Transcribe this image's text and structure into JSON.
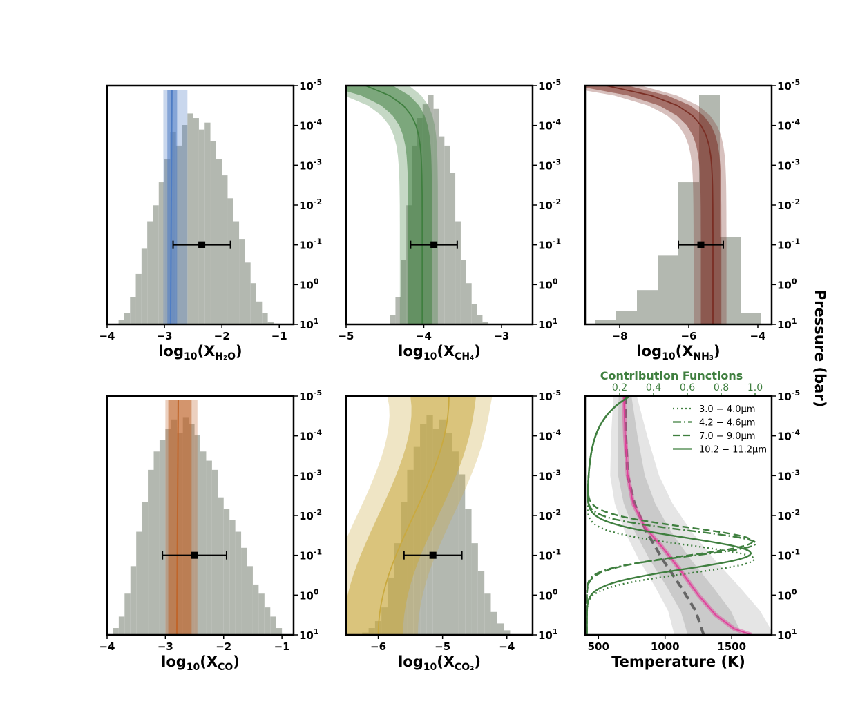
{
  "ylabel": "Pressure (bar)",
  "y_ticks": [
    {
      "exp": "-5",
      "sign": ""
    },
    {
      "exp": "-4",
      "sign": ""
    },
    {
      "exp": "-3",
      "sign": ""
    },
    {
      "exp": "-2",
      "sign": ""
    },
    {
      "exp": "-1",
      "sign": ""
    },
    {
      "exp": "0",
      "sign": ""
    },
    {
      "exp": "1",
      "sign": ""
    }
  ],
  "colors": {
    "hist": "#b3b8b0",
    "h2o": "#4d7cc4",
    "ch4": "#3f7f3f",
    "nh3": "#7a2e24",
    "co": "#c0652a",
    "co2": "#c9a93f",
    "tp": "#e0409a",
    "cf": "#3f7f3f"
  },
  "chart_data": [
    {
      "type": "histogram+profile",
      "species": "H2O",
      "xlabel_main": "log",
      "xlabel_sub10": "10",
      "xlabel_open": "(X",
      "xlabel_species": "H₂O",
      "xlabel_close": ")",
      "xlim": [
        -4,
        -0.75
      ],
      "xticks": [
        -4,
        -3,
        -2,
        -1
      ],
      "xtick_labels": [
        "−4",
        "−3",
        "−2",
        "−1"
      ],
      "ylim_pressure_bar": [
        10,
        1e-05
      ],
      "hist_bins_center": [
        -3.75,
        -3.65,
        -3.55,
        -3.45,
        -3.35,
        -3.25,
        -3.15,
        -3.05,
        -2.95,
        -2.85,
        -2.75,
        -2.65,
        -2.55,
        -2.45,
        -2.35,
        -2.25,
        -2.15,
        -2.05,
        -1.95,
        -1.85,
        -1.75,
        -1.65,
        -1.55,
        -1.45,
        -1.35,
        -1.25,
        -1.15
      ],
      "hist_counts": [
        0.02,
        0.05,
        0.12,
        0.22,
        0.33,
        0.45,
        0.52,
        0.62,
        0.72,
        0.84,
        0.78,
        0.87,
        0.92,
        0.9,
        0.85,
        0.88,
        0.8,
        0.72,
        0.65,
        0.55,
        0.45,
        0.37,
        0.27,
        0.18,
        0.1,
        0.05,
        0.01
      ],
      "profile_median": -2.87,
      "profile_1sigma": [
        -2.92,
        -2.82
      ],
      "profile_2sigma": [
        -3.0,
        -2.62
      ],
      "errorbar": {
        "x": -2.35,
        "xerr_low": 0.5,
        "xerr_high": 0.5,
        "pressure_bar": 0.1
      }
    },
    {
      "type": "histogram+profile",
      "species": "CH4",
      "xlabel_main": "log",
      "xlabel_sub10": "10",
      "xlabel_open": "(X",
      "xlabel_species": "CH₄",
      "xlabel_close": ")",
      "xlim": [
        -5,
        -2.6
      ],
      "xticks": [
        -5,
        -4,
        -3
      ],
      "xtick_labels": [
        "−5",
        "−4",
        "−3"
      ],
      "hist_bins_center": [
        -4.4,
        -4.33,
        -4.26,
        -4.19,
        -4.12,
        -4.05,
        -3.98,
        -3.91,
        -3.84,
        -3.77,
        -3.7,
        -3.63,
        -3.56,
        -3.49,
        -3.42,
        -3.35,
        -3.28,
        -3.21
      ],
      "hist_counts": [
        0.04,
        0.12,
        0.28,
        0.52,
        0.78,
        0.9,
        0.96,
        1.0,
        0.94,
        0.82,
        0.78,
        0.66,
        0.45,
        0.28,
        0.18,
        0.09,
        0.04,
        0.01
      ],
      "profile_median_top": -4.75,
      "profile_median_deep": -4.02,
      "errorbar": {
        "x": -3.87,
        "xerr_low": 0.3,
        "xerr_high": 0.3,
        "pressure_bar": 0.1
      }
    },
    {
      "type": "histogram+profile",
      "species": "NH3",
      "xlabel_main": "log",
      "xlabel_sub10": "10",
      "xlabel_open": "(X",
      "xlabel_species": "NH₃",
      "xlabel_close": ")",
      "xlim": [
        -9,
        -3.6
      ],
      "xticks": [
        -8,
        -6,
        -4
      ],
      "xtick_labels": [
        "−8",
        "−6",
        "−4"
      ],
      "hist_bins_center": [
        -8.4,
        -7.8,
        -7.2,
        -6.6,
        -6.0,
        -5.4,
        -4.8,
        -4.2
      ],
      "hist_counts": [
        0.02,
        0.06,
        0.15,
        0.3,
        0.62,
        1.0,
        0.38,
        0.05
      ],
      "profile_median_top": -8.4,
      "profile_median_deep": -5.3,
      "errorbar": {
        "x": -5.65,
        "xerr_low": 0.65,
        "xerr_high": 0.65,
        "pressure_bar": 0.1
      }
    },
    {
      "type": "histogram+profile",
      "species": "CO",
      "xlabel_main": "log",
      "xlabel_sub10": "10",
      "xlabel_open": "(X",
      "xlabel_species": "CO",
      "xlabel_close": ")",
      "xlim": [
        -4,
        -0.8
      ],
      "xticks": [
        -4,
        -3,
        -2,
        -1
      ],
      "xtick_labels": [
        "−4",
        "−3",
        "−2",
        "−1"
      ],
      "hist_bins_center": [
        -3.85,
        -3.75,
        -3.65,
        -3.55,
        -3.45,
        -3.35,
        -3.25,
        -3.15,
        -3.05,
        -2.95,
        -2.85,
        -2.75,
        -2.65,
        -2.55,
        -2.45,
        -2.35,
        -2.25,
        -2.15,
        -2.05,
        -1.95,
        -1.85,
        -1.75,
        -1.65,
        -1.55,
        -1.45,
        -1.35,
        -1.25,
        -1.15,
        -1.05
      ],
      "hist_counts": [
        0.03,
        0.08,
        0.18,
        0.3,
        0.45,
        0.58,
        0.72,
        0.8,
        0.85,
        0.9,
        0.94,
        0.88,
        0.95,
        0.92,
        0.87,
        0.8,
        0.76,
        0.72,
        0.6,
        0.55,
        0.5,
        0.45,
        0.38,
        0.3,
        0.22,
        0.18,
        0.12,
        0.08,
        0.03
      ],
      "profile_median": -2.78,
      "errorbar": {
        "x": -2.5,
        "xerr_low": 0.55,
        "xerr_high": 0.55,
        "pressure_bar": 0.1
      }
    },
    {
      "type": "histogram+profile",
      "species": "CO2",
      "xlabel_main": "log",
      "xlabel_sub10": "10",
      "xlabel_open": "(X",
      "xlabel_species": "CO₂",
      "xlabel_close": ")",
      "xlim": [
        -6.5,
        -3.6
      ],
      "xticks": [
        -6,
        -5,
        -4
      ],
      "xtick_labels": [
        "−6",
        "−5",
        "−4"
      ],
      "hist_bins_center": [
        -6.2,
        -6.1,
        -6.0,
        -5.9,
        -5.8,
        -5.7,
        -5.6,
        -5.5,
        -5.4,
        -5.3,
        -5.2,
        -5.1,
        -5.0,
        -4.9,
        -4.8,
        -4.7,
        -4.6,
        -4.5,
        -4.4,
        -4.3,
        -4.2,
        -4.1,
        -4.0
      ],
      "hist_counts": [
        0.01,
        0.03,
        0.06,
        0.12,
        0.25,
        0.4,
        0.58,
        0.72,
        0.82,
        0.92,
        0.96,
        0.9,
        0.94,
        0.88,
        0.8,
        0.7,
        0.55,
        0.4,
        0.28,
        0.18,
        0.1,
        0.05,
        0.02
      ],
      "profile_median_top": -4.9,
      "profile_median_deep": -6.0,
      "errorbar": {
        "x": -5.15,
        "xerr_low": 0.45,
        "xerr_high": 0.45,
        "pressure_bar": 0.1
      }
    },
    {
      "type": "line",
      "name": "temperature-pressure",
      "xlabel": "Temperature (K)",
      "xlim": [
        400,
        1800
      ],
      "xticks": [
        500,
        1000,
        1500
      ],
      "xtick_labels": [
        "500",
        "1000",
        "1500"
      ],
      "tp_median": [
        [
          690,
          -5
        ],
        [
          700,
          -4
        ],
        [
          720,
          -3
        ],
        [
          760,
          -2.3
        ],
        [
          850,
          -1.7
        ],
        [
          980,
          -1.2
        ],
        [
          1120,
          -0.6
        ],
        [
          1250,
          0
        ],
        [
          1380,
          0.5
        ],
        [
          1520,
          0.85
        ],
        [
          1650,
          1.0
        ]
      ],
      "tp_dashed": [
        [
          700,
          -5
        ],
        [
          705,
          -4
        ],
        [
          720,
          -3
        ],
        [
          770,
          -2.3
        ],
        [
          860,
          -1.6
        ],
        [
          980,
          -0.9
        ],
        [
          1120,
          -0.2
        ],
        [
          1230,
          0.4
        ],
        [
          1290,
          1.0
        ]
      ],
      "cf_title": "Contribution Functions",
      "cf_xticks": [
        0.2,
        0.4,
        0.6,
        0.8,
        1.0
      ],
      "cf_xtick_labels": [
        "0.2",
        "0.4",
        "0.6",
        "0.8",
        "1.0"
      ],
      "legend": [
        {
          "label": "3.0 − 4.0μm",
          "style": "dotted"
        },
        {
          "label": "4.2 − 4.6μm",
          "style": "dashdot"
        },
        {
          "label": "7.0 − 9.0μm",
          "style": "dashed"
        },
        {
          "label": "10.2 − 11.2μm",
          "style": "solid"
        }
      ]
    }
  ]
}
